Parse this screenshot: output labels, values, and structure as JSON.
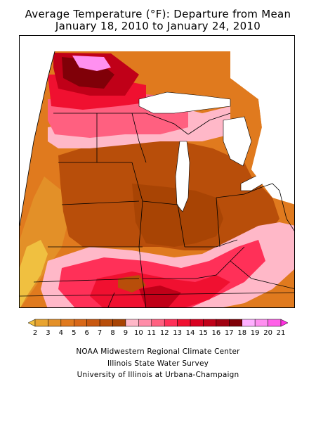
{
  "title_line1": "Average Temperature (°F): Departure from Mean",
  "title_line2": "January 18, 2010 to January 24, 2010",
  "legend": {
    "labels": [
      "2",
      "3",
      "4",
      "5",
      "6",
      "7",
      "8",
      "9",
      "10",
      "11",
      "12",
      "13",
      "14",
      "15",
      "16",
      "17",
      "18",
      "19",
      "20",
      "21"
    ],
    "colors": [
      "#f0c040",
      "#e8a430",
      "#e39028",
      "#e07a1e",
      "#d86818",
      "#c85810",
      "#b84e0a",
      "#a84404",
      "#ffb8c8",
      "#ff8ca8",
      "#ff6080",
      "#ff3058",
      "#f01030",
      "#d80020",
      "#c00018",
      "#a00010",
      "#800008",
      "#ffb0ff",
      "#ff90f0",
      "#ff60e8",
      "#ff30e0"
    ]
  },
  "credits": {
    "line1": "NOAA Midwestern Regional Climate Center",
    "line2": "Illinois State Water Survey",
    "line3": "University of Illinois at Urbana-Champaign"
  }
}
